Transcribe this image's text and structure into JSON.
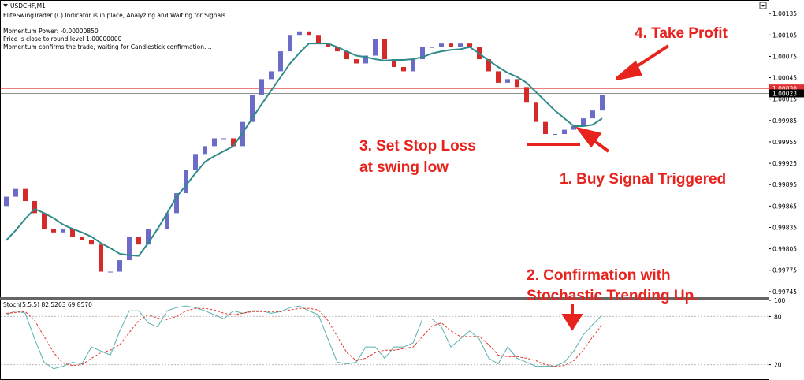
{
  "chart_data": [
    {
      "type": "candlestick",
      "title": "USDCHF,M1",
      "info_lines": [
        "EliteSwingTrader (C) Indicator is in place, Analyzing and Waiting for Signals.",
        "Momentum Power: -0.00000850",
        "Price is close to round level 1.00000000",
        "Momentum confirms the trade, waiting for Candlestick confirmation...."
      ],
      "annotations": [
        "4. Take Profit",
        "3. Set Stop Loss",
        "at swing low",
        "1. Buy Signal Triggered",
        "2. Confirmation with",
        "Stochastic Trending Up."
      ],
      "up_color": "#6b6bc8",
      "down_color": "#d42a2a",
      "open": [
        0.99865,
        0.99878,
        0.99889,
        0.99872,
        0.99855,
        0.99833,
        0.99828,
        0.99833,
        0.99822,
        0.99817,
        0.99811,
        0.99773,
        0.99773,
        0.99789,
        0.99822,
        0.99811,
        0.99833,
        0.99833,
        0.99855,
        0.99883,
        0.99916,
        0.99938,
        0.99949,
        0.9996,
        0.9996,
        0.99949,
        0.99983,
        1.00021,
        1.00043,
        1.00054,
        1.00082,
        1.00104,
        1.0011,
        1.00104,
        1.00093,
        1.00088,
        1.00082,
        1.00071,
        1.00065,
        1.00076,
        1.00099,
        1.00071,
        1.0006,
        1.00054,
        1.00071,
        1.00088,
        1.00088,
        1.00093,
        1.00088,
        1.00093,
        1.00088,
        1.00071,
        1.00054,
        1.00038,
        1.00043,
        1.00032,
        1.0001,
        0.99983,
        0.99966,
        0.99966,
        0.99972,
        0.99977,
        0.99988,
        0.99999
      ],
      "close": [
        0.99878,
        0.99889,
        0.99872,
        0.99855,
        0.99833,
        0.99828,
        0.99833,
        0.99822,
        0.99817,
        0.99811,
        0.99773,
        0.99773,
        0.99789,
        0.99822,
        0.99811,
        0.99833,
        0.99833,
        0.99855,
        0.99883,
        0.99916,
        0.99938,
        0.99949,
        0.9996,
        0.9996,
        0.99949,
        0.99983,
        1.00021,
        1.00043,
        1.00054,
        1.00082,
        1.00104,
        1.0011,
        1.00104,
        1.00093,
        1.00088,
        1.00082,
        1.00071,
        1.00065,
        1.00076,
        1.00099,
        1.00071,
        1.0006,
        1.00054,
        1.00071,
        1.00088,
        1.00088,
        1.00093,
        1.00088,
        1.00093,
        1.00088,
        1.00071,
        1.00054,
        1.00038,
        1.00043,
        1.00032,
        1.0001,
        0.99983,
        0.99966,
        0.99966,
        0.99972,
        0.99977,
        0.99988,
        0.99999,
        1.00021
      ],
      "ma": {
        "color": "#2f8a8a",
        "values": [
          0.99817,
          0.99831,
          0.99847,
          0.99861,
          0.99855,
          0.99848,
          0.99839,
          0.99833,
          0.99828,
          0.99822,
          0.99813,
          0.99806,
          0.99798,
          0.99796,
          0.99795,
          0.99813,
          0.99833,
          0.99855,
          0.99878,
          0.99894,
          0.99911,
          0.99927,
          0.99935,
          0.99942,
          0.99949,
          0.99968,
          0.99988,
          1.00008,
          1.00027,
          1.00046,
          1.00065,
          1.0008,
          1.00093,
          1.00093,
          1.00093,
          1.00088,
          1.00082,
          1.00076,
          1.00074,
          1.00071,
          1.00069,
          1.0007,
          1.0007,
          1.00071,
          1.00074,
          1.00079,
          1.00082,
          1.00084,
          1.00085,
          1.00088,
          1.00079,
          1.00069,
          1.0006,
          1.00052,
          1.00046,
          1.00038,
          1.00025,
          1.00012,
          0.99999,
          0.99988,
          0.99977,
          0.99977,
          0.99979,
          0.99988
        ]
      },
      "price_lines": [
        {
          "value": 1.0003,
          "label": "1.00030",
          "color": "#e03030"
        },
        {
          "value": 1.00023,
          "label": "1.00023",
          "color": "#909090"
        }
      ],
      "ylim": [
        0.99736,
        1.00154
      ],
      "yticks": [
        1.00135,
        1.00105,
        1.00075,
        1.00045,
        1.00015,
        0.99985,
        0.99955,
        0.99925,
        0.99895,
        0.99865,
        0.99835,
        0.99805,
        0.99775,
        0.99745
      ]
    },
    {
      "type": "line",
      "title": "Stoch(5,5,5) 82.5203 69.8570",
      "series": [
        {
          "color": "#5ab0b0",
          "dash": false,
          "values": [
            82,
            87,
            84,
            52,
            23,
            15,
            18,
            23,
            21,
            42,
            37,
            32,
            62,
            87,
            87,
            72,
            67,
            87,
            91,
            93,
            91,
            87,
            82,
            77,
            87,
            84,
            87,
            87,
            84,
            86,
            91,
            93,
            87,
            82,
            52,
            23,
            21,
            23,
            42,
            42,
            28,
            42,
            42,
            47,
            77,
            77,
            67,
            42,
            52,
            62,
            52,
            28,
            21,
            42,
            28,
            23,
            18,
            18,
            18,
            23,
            37,
            57,
            70,
            82
          ]
        },
        {
          "color": "#e0392b",
          "dash": true,
          "values": [
            84,
            85,
            86,
            75,
            55,
            35,
            22,
            19,
            20,
            28,
            35,
            38,
            45,
            60,
            75,
            82,
            78,
            76,
            80,
            87,
            90,
            90,
            88,
            84,
            82,
            84,
            86,
            86,
            86,
            86,
            88,
            90,
            90,
            88,
            75,
            55,
            35,
            25,
            28,
            35,
            38,
            38,
            40,
            42,
            55,
            68,
            72,
            62,
            55,
            55,
            55,
            45,
            32,
            30,
            30,
            28,
            25,
            20,
            18,
            19,
            25,
            38,
            55,
            70
          ]
        }
      ],
      "ylim": [
        0,
        100
      ],
      "yticks": [
        100,
        80,
        20
      ],
      "grid_levels": [
        80,
        20
      ]
    }
  ]
}
